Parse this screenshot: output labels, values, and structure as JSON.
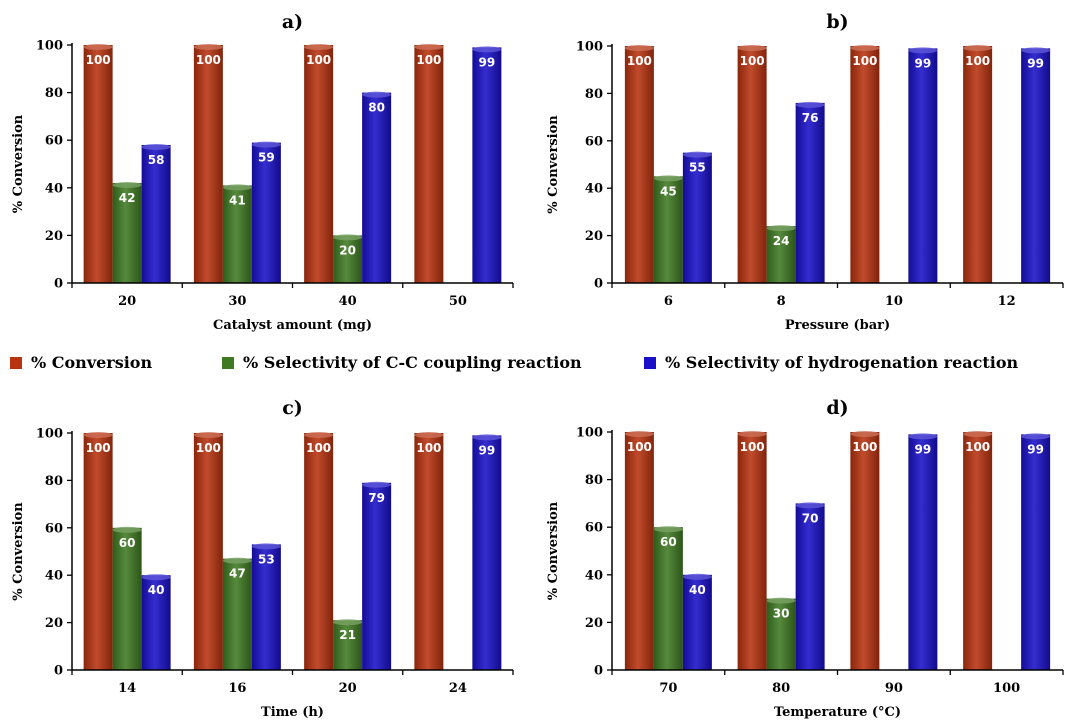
{
  "colors": {
    "conversion": "#b8330f",
    "cc_coupling": "#3f7a22",
    "hydrogenation": "#1a10c8"
  },
  "legend": [
    {
      "label": "% Conversion",
      "color": "#b8330f"
    },
    {
      "label": "% Selectivity of C-C coupling reaction",
      "color": "#3f7a22"
    },
    {
      "label": "% Selectivity of hydrogenation reaction",
      "color": "#1a10c8"
    }
  ],
  "chart_data": [
    {
      "type": "bar",
      "panel": "a)",
      "xlabel": "Catalyst amount (mg)",
      "ylabel": "% Conversion",
      "ylim": [
        0,
        100
      ],
      "yticks": [
        0,
        20,
        40,
        60,
        80,
        100
      ],
      "categories": [
        "20",
        "30",
        "40",
        "50"
      ],
      "series": [
        {
          "name": "% Conversion",
          "values": [
            100,
            100,
            100,
            100
          ]
        },
        {
          "name": "% Selectivity of C-C coupling reaction",
          "values": [
            42,
            41,
            20,
            null
          ]
        },
        {
          "name": "% Selectivity of hydrogenation reaction",
          "values": [
            58,
            59,
            80,
            99
          ]
        }
      ]
    },
    {
      "type": "bar",
      "panel": "b)",
      "xlabel": "Pressure (bar)",
      "ylabel": "% Conversion",
      "ylim": [
        0,
        100
      ],
      "yticks": [
        0,
        20,
        40,
        60,
        80,
        100
      ],
      "categories": [
        "6",
        "8",
        "10",
        "12"
      ],
      "series": [
        {
          "name": "% Conversion",
          "values": [
            100,
            100,
            100,
            100
          ]
        },
        {
          "name": "% Selectivity of C-C coupling reaction",
          "values": [
            45,
            24,
            null,
            null
          ]
        },
        {
          "name": "% Selectivity of hydrogenation reaction",
          "values": [
            55,
            76,
            99,
            99
          ]
        }
      ]
    },
    {
      "type": "bar",
      "panel": "c)",
      "xlabel": "Time (h)",
      "ylabel": "% Conversion",
      "ylim": [
        0,
        100
      ],
      "yticks": [
        0,
        20,
        40,
        60,
        80,
        100
      ],
      "categories": [
        "14",
        "16",
        "20",
        "24"
      ],
      "series": [
        {
          "name": "% Conversion",
          "values": [
            100,
            100,
            100,
            100
          ]
        },
        {
          "name": "% Selectivity of C-C coupling reaction",
          "values": [
            60,
            47,
            21,
            null
          ]
        },
        {
          "name": "% Selectivity of hydrogenation reaction",
          "values": [
            40,
            53,
            79,
            99
          ]
        }
      ]
    },
    {
      "type": "bar",
      "panel": "d)",
      "xlabel": "Temperature (°C)",
      "ylabel": "% Conversion",
      "ylim": [
        0,
        100
      ],
      "yticks": [
        0,
        20,
        40,
        60,
        80,
        100
      ],
      "categories": [
        "70",
        "80",
        "90",
        "100"
      ],
      "series": [
        {
          "name": "% Conversion",
          "values": [
            100,
            100,
            100,
            100
          ]
        },
        {
          "name": "% Selectivity of C-C coupling reaction",
          "values": [
            60,
            30,
            null,
            null
          ]
        },
        {
          "name": "% Selectivity of hydrogenation reaction",
          "values": [
            40,
            70,
            99,
            99
          ]
        }
      ]
    }
  ]
}
